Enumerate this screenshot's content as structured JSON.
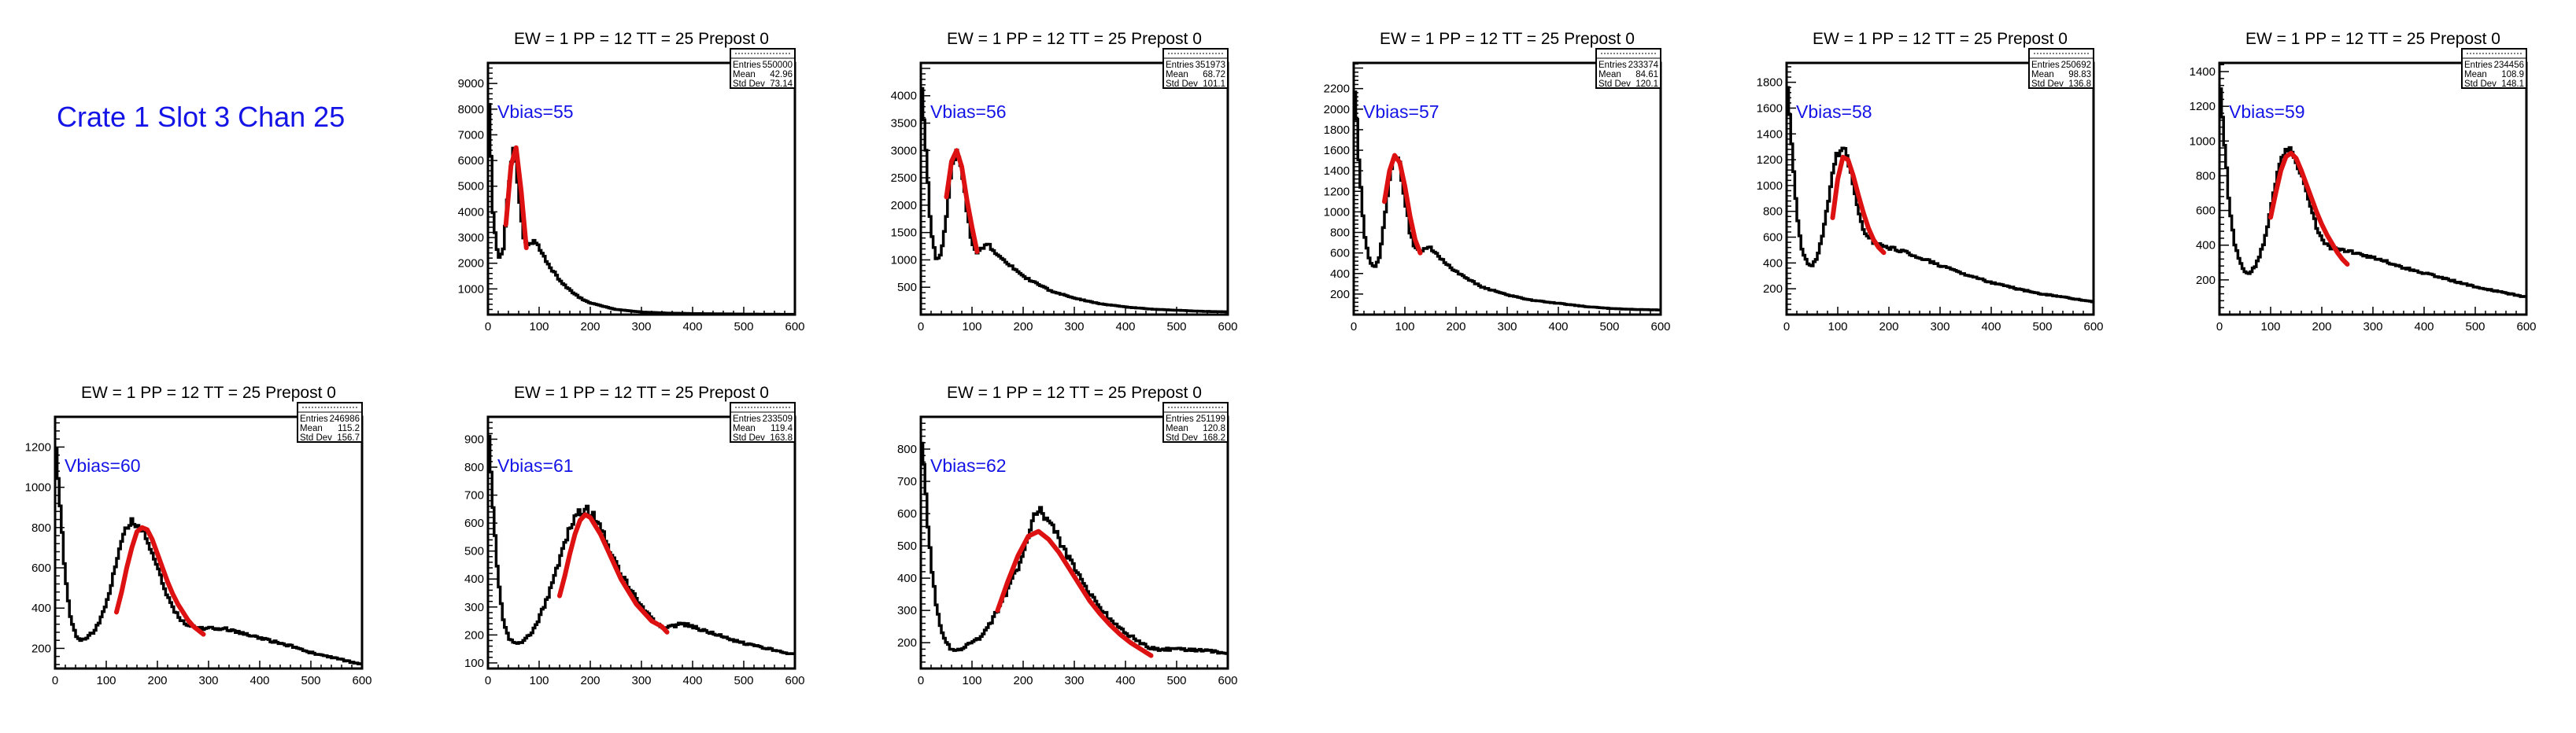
{
  "page": {
    "title": "Crate 1 Slot 3 Chan 25",
    "accent_color": "#1414e6",
    "fit_color": "#dd1111",
    "hist_color": "#000000"
  },
  "chart_data": [
    {
      "type": "line",
      "title": "EW = 1 PP = 12 TT = 25 Prepost 0",
      "annotation": "Vbias=55",
      "stats": {
        "entries_label": "Entries",
        "entries": "550000",
        "mean_label": "Mean",
        "mean": "42.96",
        "std_label": "Std Dev",
        "std": "73.14"
      },
      "xlim": [
        0,
        600
      ],
      "ylim": [
        0,
        9800
      ],
      "xticks": [
        0,
        100,
        200,
        300,
        400,
        500,
        600
      ],
      "yticks": [
        1000,
        2000,
        3000,
        4000,
        5000,
        6000,
        7000,
        8000,
        9000
      ],
      "series": [
        {
          "x": [
            0,
            10,
            20,
            30,
            40,
            50,
            60,
            70,
            80,
            90,
            100,
            120,
            140,
            160,
            180,
            200,
            250,
            300,
            350,
            400,
            450,
            500,
            550,
            600
          ],
          "y": [
            9500,
            4000,
            2100,
            2600,
            4800,
            6600,
            4800,
            3000,
            2700,
            2900,
            2600,
            1900,
            1350,
            950,
            650,
            450,
            200,
            100,
            60,
            40,
            30,
            20,
            15,
            10
          ]
        }
      ],
      "fit": {
        "x": [
          35,
          45,
          55,
          65,
          75
        ],
        "y": [
          3500,
          5800,
          6500,
          4800,
          2600
        ]
      }
    },
    {
      "type": "line",
      "title": "EW = 1 PP = 12 TT = 25 Prepost 0",
      "annotation": "Vbias=56",
      "stats": {
        "entries_label": "Entries",
        "entries": "351973",
        "mean_label": "Mean",
        "mean": "68.72",
        "std_label": "Std Dev",
        "std": "101.1"
      },
      "xlim": [
        0,
        600
      ],
      "ylim": [
        0,
        4600
      ],
      "xticks": [
        0,
        100,
        200,
        300,
        400,
        500,
        600
      ],
      "yticks": [
        500,
        1000,
        1500,
        2000,
        2500,
        3000,
        3500,
        4000
      ],
      "series": [
        {
          "x": [
            0,
            10,
            20,
            30,
            40,
            50,
            60,
            70,
            80,
            90,
            100,
            110,
            120,
            130,
            150,
            200,
            250,
            300,
            350,
            400,
            450,
            500,
            550,
            600
          ],
          "y": [
            4500,
            3000,
            1500,
            1000,
            1100,
            1800,
            2700,
            3000,
            2700,
            1900,
            1300,
            1150,
            1200,
            1300,
            1100,
            700,
            450,
            300,
            200,
            140,
            100,
            80,
            60,
            50
          ]
        }
      ],
      "fit": {
        "x": [
          50,
          60,
          70,
          80,
          90,
          100,
          110
        ],
        "y": [
          2150,
          2800,
          3000,
          2700,
          2100,
          1600,
          1150
        ]
      }
    },
    {
      "type": "line",
      "title": "EW = 1 PP = 12 TT = 25 Prepost 0",
      "annotation": "Vbias=57",
      "stats": {
        "entries_label": "Entries",
        "entries": "233374",
        "mean_label": "Mean",
        "mean": "84.61",
        "std_label": "Std Dev",
        "std": "120.1"
      },
      "xlim": [
        0,
        600
      ],
      "ylim": [
        0,
        2450
      ],
      "xticks": [
        0,
        100,
        200,
        300,
        400,
        500,
        600
      ],
      "yticks": [
        200,
        400,
        600,
        800,
        1000,
        1200,
        1400,
        1600,
        1800,
        2000,
        2200
      ],
      "series": [
        {
          "x": [
            0,
            10,
            20,
            30,
            40,
            50,
            60,
            70,
            80,
            90,
            100,
            110,
            120,
            130,
            140,
            150,
            160,
            180,
            200,
            250,
            300,
            350,
            400,
            450,
            500,
            550,
            600
          ],
          "y": [
            2400,
            1500,
            800,
            550,
            450,
            550,
            900,
            1300,
            1550,
            1450,
            1150,
            800,
            650,
            620,
            650,
            650,
            600,
            500,
            420,
            270,
            190,
            140,
            110,
            80,
            60,
            50,
            45
          ]
        }
      ],
      "fit": {
        "x": [
          60,
          70,
          80,
          90,
          100,
          110,
          120,
          130
        ],
        "y": [
          1100,
          1400,
          1550,
          1480,
          1250,
          960,
          730,
          600
        ]
      }
    },
    {
      "type": "line",
      "title": "EW = 1 PP = 12 TT = 25 Prepost 0",
      "annotation": "Vbias=58",
      "stats": {
        "entries_label": "Entries",
        "entries": "250692",
        "mean_label": "Mean",
        "mean": "98.83",
        "std_label": "Std Dev",
        "std": "136.8"
      },
      "xlim": [
        0,
        600
      ],
      "ylim": [
        0,
        1950
      ],
      "xticks": [
        0,
        100,
        200,
        300,
        400,
        500,
        600
      ],
      "yticks": [
        200,
        400,
        600,
        800,
        1000,
        1200,
        1400,
        1600,
        1800
      ],
      "series": [
        {
          "x": [
            0,
            10,
            20,
            30,
            40,
            50,
            60,
            70,
            80,
            90,
            100,
            110,
            120,
            130,
            140,
            150,
            170,
            190,
            210,
            250,
            300,
            350,
            400,
            450,
            500,
            550,
            600
          ],
          "y": [
            1900,
            1300,
            800,
            500,
            400,
            380,
            450,
            600,
            850,
            1100,
            1250,
            1300,
            1200,
            1000,
            800,
            650,
            560,
            530,
            510,
            460,
            380,
            310,
            250,
            200,
            160,
            130,
            100
          ]
        }
      ],
      "fit": {
        "x": [
          90,
          100,
          110,
          120,
          130,
          140,
          150,
          160,
          170,
          180,
          190
        ],
        "y": [
          750,
          1050,
          1220,
          1200,
          1080,
          930,
          790,
          670,
          580,
          520,
          480
        ]
      }
    },
    {
      "type": "line",
      "title": "EW = 1 PP = 12 TT = 25 Prepost 0",
      "annotation": "Vbias=59",
      "stats": {
        "entries_label": "Entries",
        "entries": "234456",
        "mean_label": "Mean",
        "mean": "108.9",
        "std_label": "Std Dev",
        "std": "148.1"
      },
      "xlim": [
        0,
        600
      ],
      "ylim": [
        0,
        1450
      ],
      "xticks": [
        0,
        100,
        200,
        300,
        400,
        500,
        600
      ],
      "yticks": [
        200,
        400,
        600,
        800,
        1000,
        1200,
        1400
      ],
      "series": [
        {
          "x": [
            0,
            10,
            20,
            30,
            40,
            50,
            60,
            70,
            80,
            90,
            100,
            110,
            120,
            130,
            140,
            150,
            160,
            170,
            180,
            190,
            200,
            220,
            240,
            260,
            300,
            350,
            400,
            450,
            500,
            550,
            600
          ],
          "y": [
            1400,
            1000,
            600,
            400,
            300,
            250,
            240,
            280,
            350,
            450,
            600,
            750,
            900,
            960,
            950,
            880,
            800,
            700,
            600,
            500,
            430,
            380,
            370,
            360,
            330,
            280,
            240,
            200,
            160,
            130,
            100
          ]
        }
      ],
      "fit": {
        "x": [
          100,
          110,
          120,
          130,
          140,
          150,
          160,
          170,
          180,
          190,
          200,
          210,
          220,
          230,
          240,
          250
        ],
        "y": [
          560,
          700,
          830,
          910,
          930,
          900,
          830,
          750,
          670,
          590,
          520,
          460,
          410,
          360,
          320,
          290
        ]
      }
    },
    {
      "type": "line",
      "title": "EW = 1 PP = 12 TT = 25 Prepost 0",
      "annotation": "Vbias=60",
      "stats": {
        "entries_label": "Entries",
        "entries": "246986",
        "mean_label": "Mean",
        "mean": "115.2",
        "std_label": "Std Dev",
        "std": "156.7"
      },
      "xlim": [
        0,
        600
      ],
      "ylim": [
        100,
        1350
      ],
      "xticks": [
        0,
        100,
        200,
        300,
        400,
        500,
        600
      ],
      "yticks": [
        200,
        400,
        600,
        800,
        1000,
        1200
      ],
      "series": [
        {
          "x": [
            0,
            10,
            20,
            30,
            40,
            50,
            60,
            70,
            80,
            90,
            100,
            110,
            120,
            130,
            140,
            150,
            160,
            170,
            180,
            190,
            200,
            210,
            220,
            240,
            260,
            280,
            300,
            330,
            360,
            400,
            450,
            500,
            550,
            600
          ],
          "y": [
            1300,
            900,
            550,
            350,
            270,
            240,
            250,
            270,
            300,
            350,
            420,
            520,
            640,
            740,
            800,
            830,
            820,
            790,
            740,
            670,
            600,
            520,
            450,
            360,
            310,
            300,
            300,
            300,
            280,
            250,
            220,
            180,
            150,
            120
          ]
        }
      ],
      "fit": {
        "x": [
          120,
          130,
          140,
          150,
          160,
          170,
          180,
          190,
          200,
          210,
          220,
          230,
          240,
          250,
          260,
          270,
          280,
          290
        ],
        "y": [
          380,
          480,
          600,
          700,
          780,
          800,
          790,
          740,
          670,
          600,
          530,
          470,
          420,
          380,
          340,
          310,
          290,
          270
        ]
      }
    },
    {
      "type": "line",
      "title": "EW = 1 PP = 12 TT = 25 Prepost 0",
      "annotation": "Vbias=61",
      "stats": {
        "entries_label": "Entries",
        "entries": "233509",
        "mean_label": "Mean",
        "mean": "119.4",
        "std_label": "Std Dev",
        "std": "163.8"
      },
      "xlim": [
        0,
        600
      ],
      "ylim": [
        80,
        980
      ],
      "xticks": [
        0,
        100,
        200,
        300,
        400,
        500,
        600
      ],
      "yticks": [
        100,
        200,
        300,
        400,
        500,
        600,
        700,
        800,
        900
      ],
      "series": [
        {
          "x": [
            0,
            10,
            20,
            30,
            40,
            50,
            60,
            70,
            80,
            90,
            100,
            120,
            140,
            160,
            170,
            180,
            190,
            200,
            210,
            220,
            230,
            240,
            260,
            280,
            300,
            320,
            340,
            360,
            380,
            400,
            450,
            500,
            550,
            600
          ],
          "y": [
            950,
            650,
            400,
            250,
            190,
            170,
            170,
            180,
            200,
            220,
            260,
            350,
            470,
            580,
            620,
            640,
            650,
            640,
            620,
            590,
            540,
            490,
            420,
            360,
            300,
            260,
            230,
            230,
            240,
            230,
            200,
            170,
            150,
            130
          ]
        }
      ],
      "fit": {
        "x": [
          140,
          150,
          160,
          170,
          180,
          190,
          200,
          210,
          220,
          230,
          240,
          250,
          260,
          270,
          280,
          290,
          300,
          310,
          320,
          330,
          340,
          350
        ],
        "y": [
          340,
          410,
          490,
          560,
          610,
          630,
          620,
          590,
          560,
          520,
          480,
          440,
          400,
          370,
          340,
          310,
          290,
          270,
          250,
          240,
          230,
          210
        ]
      }
    },
    {
      "type": "line",
      "title": "EW = 1 PP = 12 TT = 25 Prepost 0",
      "annotation": "Vbias=62",
      "stats": {
        "entries_label": "Entries",
        "entries": "251199",
        "mean_label": "Mean",
        "mean": "120.8",
        "std_label": "Std Dev",
        "std": "168.2"
      },
      "xlim": [
        0,
        600
      ],
      "ylim": [
        120,
        900
      ],
      "xticks": [
        0,
        100,
        200,
        300,
        400,
        500,
        600
      ],
      "yticks": [
        200,
        300,
        400,
        500,
        600,
        700,
        800
      ],
      "series": [
        {
          "x": [
            0,
            10,
            20,
            30,
            40,
            50,
            60,
            70,
            80,
            90,
            100,
            110,
            120,
            140,
            160,
            180,
            200,
            210,
            220,
            230,
            240,
            250,
            260,
            270,
            280,
            300,
            320,
            340,
            360,
            380,
            400,
            420,
            440,
            460,
            500,
            550,
            600
          ],
          "y": [
            880,
            650,
            450,
            320,
            240,
            200,
            180,
            180,
            180,
            190,
            200,
            210,
            220,
            270,
            330,
            400,
            470,
            530,
            580,
            610,
            600,
            570,
            550,
            520,
            490,
            430,
            380,
            330,
            290,
            260,
            230,
            210,
            190,
            180,
            180,
            175,
            170
          ]
        }
      ],
      "fit": {
        "x": [
          150,
          170,
          190,
          210,
          230,
          250,
          270,
          290,
          310,
          330,
          350,
          370,
          390,
          410,
          430,
          450
        ],
        "y": [
          300,
          390,
          470,
          530,
          545,
          520,
          480,
          430,
          380,
          330,
          290,
          255,
          225,
          200,
          180,
          160
        ]
      }
    }
  ]
}
